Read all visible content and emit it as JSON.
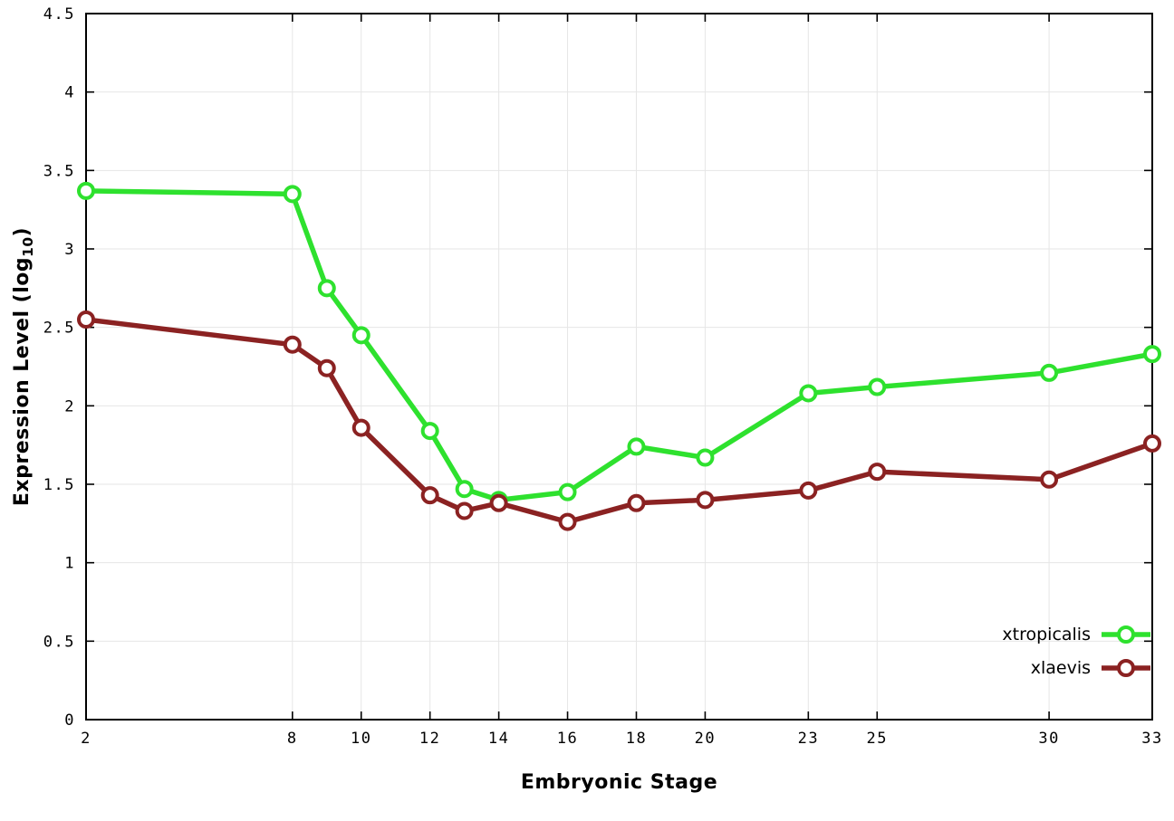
{
  "chart_data": {
    "type": "line",
    "title": "",
    "xlabel": "Embryonic Stage",
    "ylabel": "Expression Level (log10)",
    "x": [
      2,
      8,
      9,
      10,
      12,
      13,
      14,
      16,
      18,
      20,
      23,
      25,
      30,
      33
    ],
    "series": [
      {
        "name": "xtropicalis",
        "color": "#2ee12e",
        "marker": "open-circle",
        "values": [
          3.37,
          3.35,
          2.75,
          2.45,
          1.84,
          1.47,
          1.4,
          1.45,
          1.74,
          1.67,
          2.08,
          2.12,
          2.21,
          2.33
        ]
      },
      {
        "name": "xlaevis",
        "color": "#8b2222",
        "marker": "open-circle",
        "values": [
          2.55,
          2.39,
          2.24,
          1.86,
          1.43,
          1.33,
          1.38,
          1.26,
          1.38,
          1.4,
          1.46,
          1.58,
          1.53,
          1.76
        ]
      }
    ],
    "xticks": [
      2,
      8,
      10,
      12,
      14,
      16,
      18,
      20,
      23,
      25,
      30,
      33
    ],
    "yticks": [
      0,
      0.5,
      1,
      1.5,
      2,
      2.5,
      3,
      3.5,
      4,
      4.5
    ],
    "xlim": [
      2,
      33
    ],
    "ylim": [
      0,
      4.5
    ],
    "grid": true,
    "grid_color": "#e6e6e6",
    "axis_color": "#000000",
    "background": "#ffffff",
    "legend_position": "inside-bottom-right",
    "legend_entries": [
      "xtropicalis",
      "xlaevis"
    ]
  },
  "axis_labels": {
    "x": "Embryonic Stage",
    "y_pre": "Expression Level (log",
    "y_sub": "10",
    "y_post": ")"
  }
}
